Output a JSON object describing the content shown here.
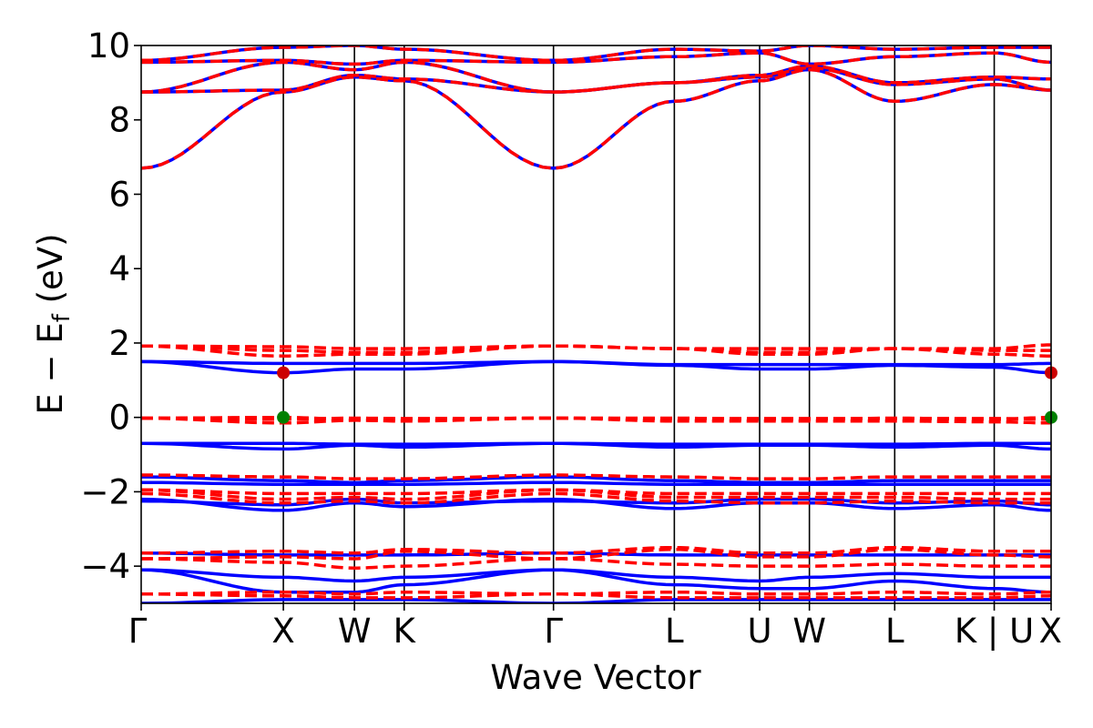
{
  "chart_data": {
    "type": "line",
    "title": "",
    "xlabel": "Wave Vector",
    "ylabel": "E − E_f (eV)",
    "ylabel_main": "E  −  E",
    "ylabel_sub": "f",
    "ylabel_tail": " (eV)",
    "ylim": [
      -5,
      10
    ],
    "yticks": [
      -4,
      -2,
      0,
      2,
      4,
      6,
      8,
      10
    ],
    "ytick_labels": [
      "−4",
      "−2",
      "0",
      "2",
      "4",
      "6",
      "8",
      "10"
    ],
    "xlim": [
      0,
      6.4
    ],
    "kpoints": [
      {
        "label": "Γ",
        "x": 0.0
      },
      {
        "label": "X",
        "x": 1.0
      },
      {
        "label": "W",
        "x": 1.5
      },
      {
        "label": "K",
        "x": 1.85
      },
      {
        "label": "Γ",
        "x": 2.9
      },
      {
        "label": "L",
        "x": 3.75
      },
      {
        "label": "U",
        "x": 4.35
      },
      {
        "label": "W",
        "x": 4.7
      },
      {
        "label": "L",
        "x": 5.3
      },
      {
        "label": "K | U",
        "x": 6.0
      },
      {
        "label": "X",
        "x": 6.4
      }
    ],
    "grid": false,
    "legend": "none",
    "colors": {
      "spin_up": "#0000ff",
      "spin_down": "#ff0000",
      "vbm_marker": "#008000",
      "cbm_marker": "#cc0000"
    },
    "markers": [
      {
        "type": "cbm",
        "x": 1.0,
        "y": 1.2
      },
      {
        "type": "vbm",
        "x": 1.0,
        "y": 0.0
      },
      {
        "type": "cbm",
        "x": 6.4,
        "y": 1.2
      },
      {
        "type": "vbm",
        "x": 6.4,
        "y": 0.0
      }
    ],
    "bands": {
      "shared_conduction": [
        [
          6.7,
          8.75,
          9.15,
          9.05,
          6.7,
          8.5,
          9.05,
          9.35,
          8.5,
          8.95,
          8.8
        ],
        [
          8.75,
          8.8,
          9.2,
          9.1,
          8.75,
          9.0,
          9.15,
          9.4,
          8.95,
          9.1,
          8.8
        ],
        [
          8.75,
          9.55,
          9.35,
          9.55,
          8.75,
          9.0,
          9.2,
          9.45,
          9.0,
          9.15,
          9.1
        ],
        [
          9.55,
          9.6,
          9.5,
          9.6,
          9.55,
          9.7,
          9.8,
          9.5,
          9.7,
          9.8,
          9.55
        ],
        [
          9.6,
          9.95,
          10.0,
          9.9,
          9.6,
          9.9,
          9.85,
          10.0,
          9.9,
          9.95,
          9.95
        ]
      ],
      "spin_up": [
        [
          1.5,
          1.2,
          1.3,
          1.3,
          1.5,
          1.4,
          1.3,
          1.3,
          1.4,
          1.35,
          1.2
        ],
        [
          1.5,
          1.45,
          1.45,
          1.45,
          1.5,
          1.42,
          1.42,
          1.42,
          1.42,
          1.42,
          1.45
        ],
        [
          -0.7,
          -0.85,
          -0.75,
          -0.8,
          -0.7,
          -0.8,
          -0.75,
          -0.75,
          -0.8,
          -0.75,
          -0.85
        ],
        [
          -0.7,
          -0.7,
          -0.72,
          -0.72,
          -0.7,
          -0.72,
          -0.72,
          -0.72,
          -0.72,
          -0.7,
          -0.7
        ],
        [
          -1.6,
          -1.7,
          -1.75,
          -1.7,
          -1.6,
          -1.7,
          -1.75,
          -1.75,
          -1.7,
          -1.7,
          -1.7
        ],
        [
          -1.75,
          -1.8,
          -1.8,
          -1.8,
          -1.75,
          -1.8,
          -1.8,
          -1.8,
          -1.8,
          -1.8,
          -1.8
        ],
        [
          -2.2,
          -2.5,
          -2.3,
          -2.4,
          -2.2,
          -2.45,
          -2.3,
          -2.3,
          -2.45,
          -2.35,
          -2.5
        ],
        [
          -2.25,
          -2.35,
          -2.2,
          -2.3,
          -2.25,
          -2.3,
          -2.2,
          -2.2,
          -2.3,
          -2.25,
          -2.35
        ],
        [
          -3.65,
          -3.7,
          -3.7,
          -3.7,
          -3.65,
          -3.7,
          -3.7,
          -3.7,
          -3.7,
          -3.7,
          -3.7
        ],
        [
          -4.1,
          -4.3,
          -4.4,
          -4.3,
          -4.1,
          -4.3,
          -4.4,
          -4.3,
          -4.2,
          -4.3,
          -4.3
        ],
        [
          -4.1,
          -4.7,
          -4.7,
          -4.5,
          -4.1,
          -4.5,
          -4.6,
          -4.6,
          -4.4,
          -4.6,
          -4.7
        ],
        [
          -5.0,
          -4.9,
          -4.9,
          -4.9,
          -5.0,
          -4.9,
          -4.9,
          -4.9,
          -4.9,
          -4.9,
          -4.9
        ]
      ],
      "spin_down": [
        [
          1.92,
          1.8,
          1.75,
          1.75,
          1.92,
          1.85,
          1.75,
          1.75,
          1.85,
          1.8,
          1.8
        ],
        [
          1.92,
          1.9,
          1.85,
          1.85,
          1.92,
          1.85,
          1.85,
          1.85,
          1.85,
          1.85,
          1.95
        ],
        [
          1.92,
          1.65,
          1.7,
          1.7,
          1.92,
          1.85,
          1.7,
          1.7,
          1.85,
          1.7,
          1.65
        ],
        [
          -0.02,
          0.0,
          -0.05,
          -0.05,
          -0.02,
          -0.02,
          -0.05,
          -0.05,
          -0.02,
          -0.05,
          0.0
        ],
        [
          -0.02,
          -0.15,
          -0.08,
          -0.1,
          -0.02,
          -0.1,
          -0.1,
          -0.1,
          -0.1,
          -0.12,
          -0.15
        ],
        [
          -0.02,
          -0.05,
          -0.02,
          -0.03,
          -0.02,
          -0.03,
          -0.03,
          -0.03,
          -0.03,
          -0.03,
          -0.05
        ],
        [
          -1.55,
          -1.6,
          -1.65,
          -1.65,
          -1.55,
          -1.6,
          -1.65,
          -1.65,
          -1.6,
          -1.6,
          -1.6
        ],
        [
          -1.95,
          -2.05,
          -2.05,
          -2.05,
          -1.95,
          -2.05,
          -2.05,
          -2.05,
          -2.05,
          -2.05,
          -2.05
        ],
        [
          -1.95,
          -2.2,
          -2.15,
          -2.2,
          -1.95,
          -2.15,
          -2.15,
          -2.15,
          -2.15,
          -2.2,
          -2.2
        ],
        [
          -2.05,
          -2.3,
          -2.25,
          -2.3,
          -2.05,
          -2.25,
          -2.3,
          -2.3,
          -2.25,
          -2.3,
          -2.3
        ],
        [
          -3.65,
          -3.6,
          -3.65,
          -3.55,
          -3.65,
          -3.5,
          -3.65,
          -3.65,
          -3.5,
          -3.6,
          -3.6
        ],
        [
          -3.8,
          -3.9,
          -4.05,
          -4.0,
          -3.8,
          -3.95,
          -4.0,
          -4.0,
          -3.95,
          -4.0,
          -4.0
        ],
        [
          -3.8,
          -3.75,
          -3.8,
          -3.6,
          -3.8,
          -3.55,
          -3.75,
          -3.75,
          -3.55,
          -3.7,
          -3.75
        ],
        [
          -4.75,
          -4.7,
          -4.75,
          -4.7,
          -4.75,
          -4.7,
          -4.75,
          -4.75,
          -4.7,
          -4.75,
          -4.7
        ],
        [
          -4.75,
          -4.8,
          -4.85,
          -4.85,
          -4.75,
          -4.85,
          -4.85,
          -4.85,
          -4.85,
          -4.85,
          -4.8
        ]
      ]
    }
  }
}
